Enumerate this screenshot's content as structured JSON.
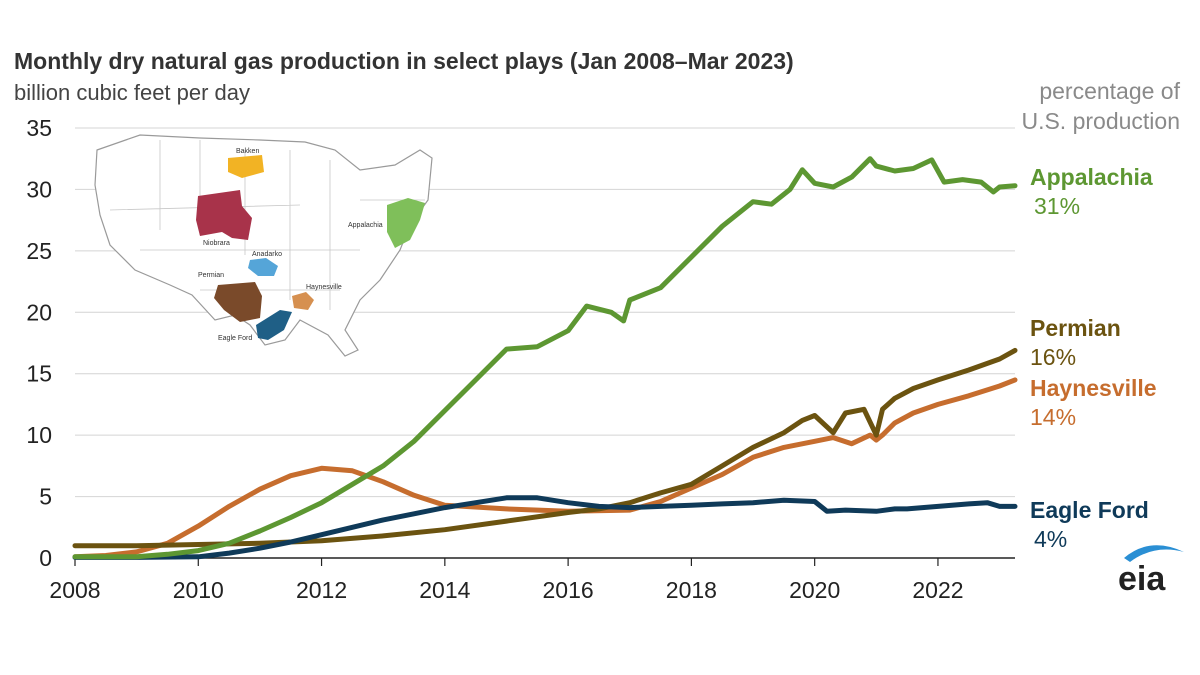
{
  "title": "Monthly dry natural gas production in select plays (Jan 2008–Mar 2023)",
  "subtitle": "billion cubic feet per day",
  "percentage_note_line1": "percentage of",
  "percentage_note_line2": "U.S. production",
  "logo_text": "eia",
  "map_labels": {
    "bakken": "Bakken",
    "niobrara": "Niobrara",
    "anadarko": "Anadarko",
    "appalachia": "Appalachia",
    "permian": "Permian",
    "haynesville": "Haynesville",
    "eagle_ford": "Eagle Ford"
  },
  "chart_data": {
    "type": "line",
    "title": "Monthly dry natural gas production in select plays (Jan 2008–Mar 2023)",
    "ylabel": "billion cubic feet per day",
    "xlabel": "",
    "xlim": [
      2008,
      2023.25
    ],
    "ylim": [
      0,
      35
    ],
    "x_ticks": [
      "2008",
      "2010",
      "2012",
      "2014",
      "2016",
      "2018",
      "2020",
      "2022"
    ],
    "y_ticks": [
      "0",
      "5",
      "10",
      "15",
      "20",
      "25",
      "30",
      "35"
    ],
    "grid": "horizontal",
    "series": [
      {
        "name": "Appalachia",
        "share": "31%",
        "color": "#5d9732",
        "x": [
          2008,
          2009,
          2009.5,
          2010,
          2010.5,
          2011,
          2011.5,
          2012,
          2012.5,
          2013,
          2013.5,
          2014,
          2014.5,
          2015,
          2015.5,
          2016,
          2016.3,
          2016.7,
          2016.9,
          2017,
          2017.5,
          2018,
          2018.5,
          2019,
          2019.3,
          2019.6,
          2019.8,
          2020,
          2020.3,
          2020.6,
          2020.9,
          2021,
          2021.3,
          2021.6,
          2021.9,
          2022.1,
          2022.4,
          2022.7,
          2022.9,
          2023,
          2023.25
        ],
        "values": [
          0.1,
          0.1,
          0.3,
          0.6,
          1.2,
          2.2,
          3.3,
          4.5,
          6.0,
          7.5,
          9.5,
          12.0,
          14.5,
          17.0,
          17.2,
          18.5,
          20.5,
          20.0,
          19.3,
          21.0,
          22.0,
          24.5,
          27.0,
          29.0,
          28.8,
          30.0,
          31.6,
          30.5,
          30.2,
          31.0,
          32.5,
          31.9,
          31.5,
          31.7,
          32.4,
          30.6,
          30.8,
          30.6,
          29.8,
          30.2,
          30.3
        ]
      },
      {
        "name": "Permian",
        "share": "16%",
        "color": "#6b5310",
        "x": [
          2008,
          2009,
          2010,
          2011,
          2012,
          2013,
          2014,
          2015,
          2016,
          2016.5,
          2017,
          2017.5,
          2018,
          2018.5,
          2019,
          2019.5,
          2019.8,
          2020,
          2020.3,
          2020.5,
          2020.8,
          2021,
          2021.1,
          2021.3,
          2021.6,
          2022,
          2022.5,
          2023,
          2023.25
        ],
        "values": [
          1.0,
          1.0,
          1.1,
          1.2,
          1.4,
          1.8,
          2.3,
          3.0,
          3.7,
          4.0,
          4.5,
          5.3,
          6.0,
          7.5,
          9.0,
          10.2,
          11.2,
          11.6,
          10.2,
          11.8,
          12.1,
          10.0,
          12.1,
          13.0,
          13.8,
          14.5,
          15.3,
          16.2,
          16.9
        ]
      },
      {
        "name": "Haynesville",
        "share": "14%",
        "color": "#c66d2e",
        "x": [
          2008,
          2008.5,
          2009,
          2009.5,
          2010,
          2010.5,
          2011,
          2011.5,
          2012,
          2012.5,
          2013,
          2013.5,
          2014,
          2015,
          2016,
          2017,
          2017.5,
          2018,
          2018.5,
          2019,
          2019.5,
          2020,
          2020.3,
          2020.6,
          2020.9,
          2021,
          2021.1,
          2021.3,
          2021.6,
          2022,
          2022.5,
          2023,
          2023.25
        ],
        "values": [
          0.1,
          0.2,
          0.5,
          1.2,
          2.6,
          4.2,
          5.6,
          6.7,
          7.3,
          7.1,
          6.2,
          5.1,
          4.3,
          4.0,
          3.8,
          3.9,
          4.6,
          5.7,
          6.8,
          8.2,
          9.0,
          9.5,
          9.8,
          9.3,
          10.0,
          9.6,
          10.0,
          11.0,
          11.8,
          12.5,
          13.2,
          14.0,
          14.5
        ]
      },
      {
        "name": "Eagle Ford",
        "share": "4%",
        "color": "#0f3a59",
        "x": [
          2008,
          2009,
          2010,
          2010.5,
          2011,
          2011.5,
          2012,
          2012.5,
          2013,
          2013.5,
          2014,
          2014.5,
          2015,
          2015.5,
          2016,
          2016.5,
          2017,
          2017.5,
          2018,
          2018.5,
          2019,
          2019.5,
          2020,
          2020.2,
          2020.5,
          2021,
          2021.3,
          2021.5,
          2022,
          2022.5,
          2022.8,
          2023,
          2023.25
        ],
        "values": [
          0.05,
          0.05,
          0.1,
          0.4,
          0.8,
          1.3,
          1.9,
          2.5,
          3.1,
          3.6,
          4.1,
          4.5,
          4.9,
          4.9,
          4.5,
          4.2,
          4.1,
          4.2,
          4.3,
          4.4,
          4.5,
          4.7,
          4.6,
          3.8,
          3.9,
          3.8,
          4.0,
          4.0,
          4.2,
          4.4,
          4.5,
          4.2,
          4.2
        ]
      }
    ]
  }
}
